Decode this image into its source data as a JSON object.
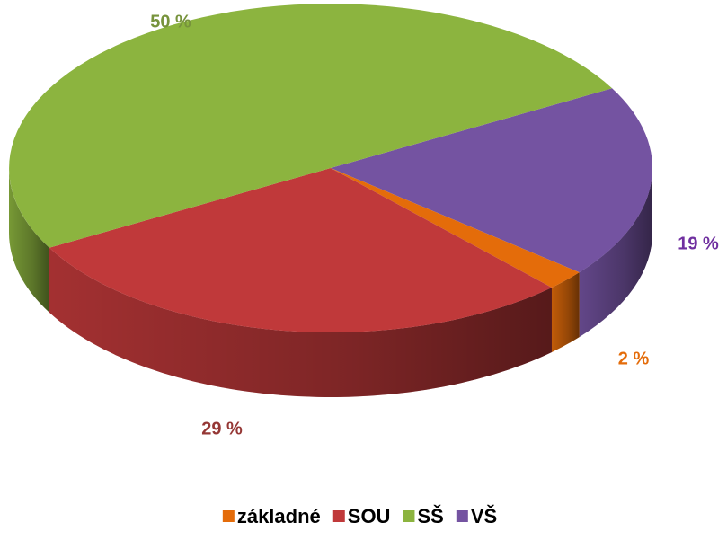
{
  "chart_data": {
    "type": "pie3d",
    "categories": [
      "základné",
      "SOU",
      "SŠ",
      "VŠ"
    ],
    "values": [
      2,
      29,
      50,
      19
    ],
    "value_labels": [
      "2 %",
      "29 %",
      "50 %",
      "19 %"
    ],
    "colors": [
      "#e46c0a",
      "#c0393a",
      "#8cb43f",
      "#7453a1"
    ],
    "label_colors": [
      "#e46c0a",
      "#953735",
      "#77933c",
      "#7030a0"
    ],
    "legend": "bottom"
  }
}
